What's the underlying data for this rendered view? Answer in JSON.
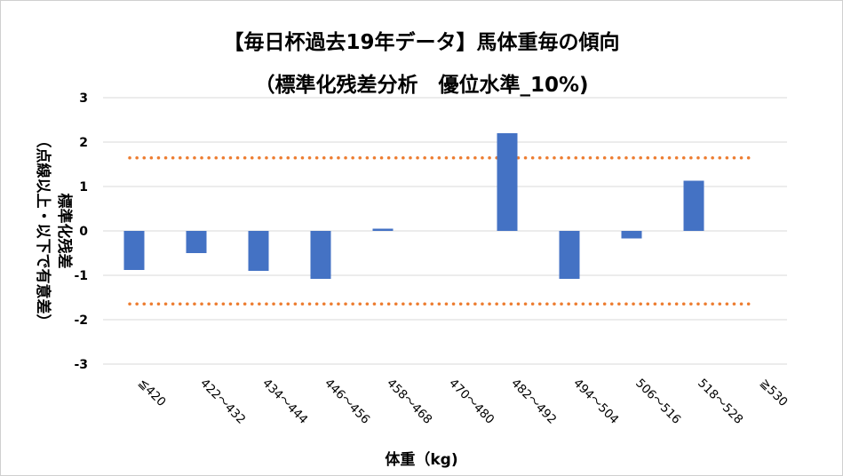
{
  "chart_data": {
    "type": "bar",
    "title": "【毎日杯過去19年データ】馬体重毎の傾向",
    "subtitle": "（標準化残差分析　優位水準_10%)",
    "ylabel_line1": "標準化残差",
    "ylabel_line2": "（点線以上・以下で有意差）",
    "xlabel": "体重（kg)",
    "categories": [
      "≦420",
      "422～432",
      "434～444",
      "446～456",
      "458～468",
      "470～480",
      "482～492",
      "494～504",
      "506～516",
      "518～528",
      "≧530"
    ],
    "values": [
      -0.88,
      -0.5,
      -0.9,
      -1.08,
      0.05,
      0.0,
      2.2,
      -1.08,
      -0.17,
      1.13,
      0.0
    ],
    "ylim": [
      -3,
      3
    ],
    "yticks": [
      3,
      2,
      1,
      0,
      -1,
      -2,
      -3
    ],
    "significance_lines": [
      1.645,
      -1.645
    ],
    "grid": true,
    "legend": "none",
    "colors": {
      "bar": "#4472C4",
      "threshold": "#ED7D31",
      "grid": "#D9D9D9"
    }
  }
}
